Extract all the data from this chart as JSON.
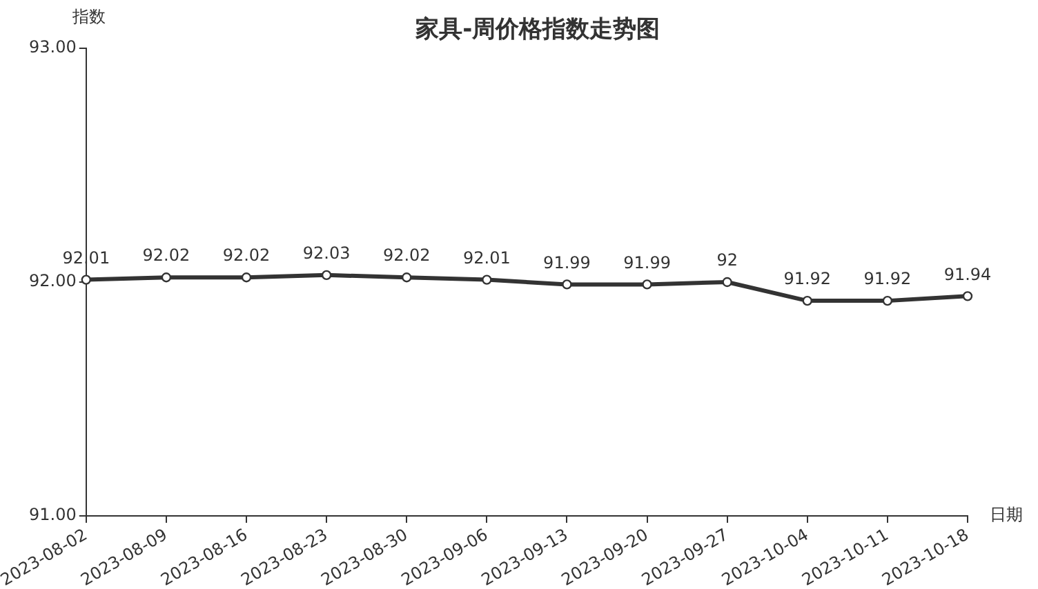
{
  "chart_data": {
    "type": "line",
    "title": "家具-周价格指数走势图",
    "xlabel": "日期",
    "ylabel": "指数",
    "categories": [
      "2023-08-02",
      "2023-08-09",
      "2023-08-16",
      "2023-08-23",
      "2023-08-30",
      "2023-09-06",
      "2023-09-13",
      "2023-09-20",
      "2023-09-27",
      "2023-10-04",
      "2023-10-11",
      "2023-10-18"
    ],
    "values": [
      92.01,
      92.02,
      92.02,
      92.03,
      92.02,
      92.01,
      91.99,
      91.99,
      92,
      91.92,
      91.92,
      91.94
    ],
    "color": "#333333",
    "ylim": [
      91,
      93
    ],
    "yticks": [
      {
        "value": 91,
        "label": "91.00"
      },
      {
        "value": 92,
        "label": "92.00"
      },
      {
        "value": 93,
        "label": "93.00"
      }
    ],
    "marker": "circle",
    "data_labels": true
  }
}
